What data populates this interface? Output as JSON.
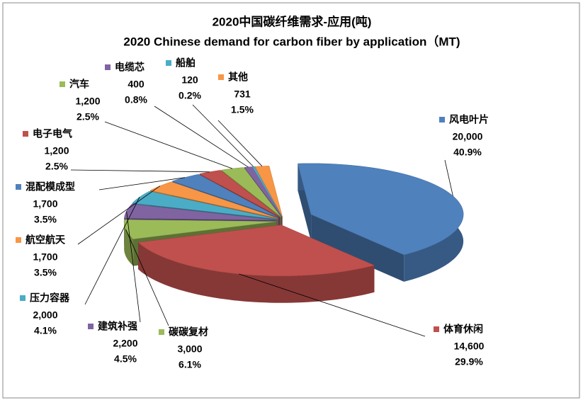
{
  "chart_data": {
    "type": "pie3d",
    "title": "2020中国碳纤维需求-应用(吨)",
    "subtitle": "2020 Chinese demand for carbon fiber by application（MT)",
    "categories": [
      "风电叶片",
      "体育休闲",
      "碳碳复材",
      "建筑补强",
      "压力容器",
      "航空航天",
      "混配模成型",
      "电子电气",
      "汽车",
      "电缆芯",
      "船舶",
      "其他"
    ],
    "values": [
      20000,
      14600,
      3000,
      2200,
      2000,
      1700,
      1700,
      1200,
      1200,
      400,
      120,
      731
    ],
    "value_labels": [
      "20,000",
      "14,600",
      "3,000",
      "2,200",
      "2,000",
      "1,700",
      "1,700",
      "1,200",
      "1,200",
      "400",
      "120",
      "731"
    ],
    "percent_labels": [
      "40.9%",
      "29.9%",
      "6.1%",
      "4.5%",
      "4.1%",
      "3.5%",
      "3.5%",
      "2.5%",
      "2.5%",
      "0.8%",
      "0.2%",
      "1.5%"
    ],
    "colors": [
      "#4F81BD",
      "#C0504D",
      "#9BBB59",
      "#8064A2",
      "#4BACC6",
      "#F79646",
      "#4F81BD",
      "#C0504D",
      "#9BBB59",
      "#8064A2",
      "#4BACC6",
      "#F79646"
    ]
  }
}
